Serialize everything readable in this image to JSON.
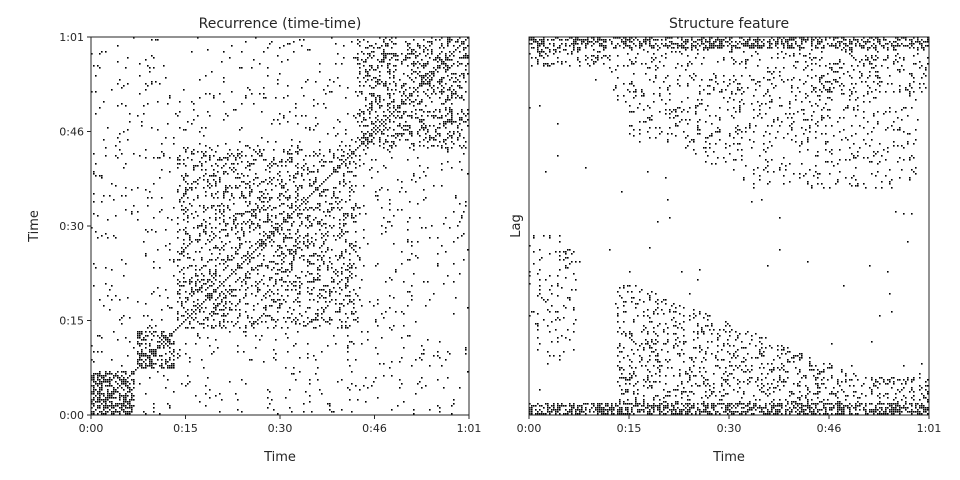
{
  "chart_data": [
    {
      "type": "heatmap",
      "title": "Recurrence (time-time)",
      "xlabel": "Time",
      "ylabel": "Time",
      "x_ticks": [
        "0:00",
        "0:15",
        "0:30",
        "0:46",
        "1:01"
      ],
      "y_ticks": [
        "0:00",
        "0:15",
        "0:30",
        "0:46",
        "1:01"
      ],
      "xlim_seconds": [
        0,
        61
      ],
      "ylim_seconds": [
        0,
        61
      ],
      "colors": {
        "point": "#000000",
        "background": "#ffffff"
      },
      "blocks": [
        {
          "t0": 0,
          "t1": 7,
          "density": 0.55
        },
        {
          "t0": 7.5,
          "t1": 13.5,
          "density": 0.45
        },
        {
          "t0": 14,
          "t1": 43,
          "density": 0.18
        },
        {
          "t0": 43,
          "t1": 61,
          "density": 0.25
        }
      ]
    },
    {
      "type": "heatmap",
      "title": "Structure feature",
      "xlabel": "Time",
      "ylabel": "Lag",
      "x_ticks": [
        "0:00",
        "0:15",
        "0:30",
        "0:46",
        "1:01"
      ],
      "xlim_seconds": [
        0,
        61
      ],
      "colors": {
        "point": "#000000",
        "background": "#ffffff"
      }
    }
  ]
}
